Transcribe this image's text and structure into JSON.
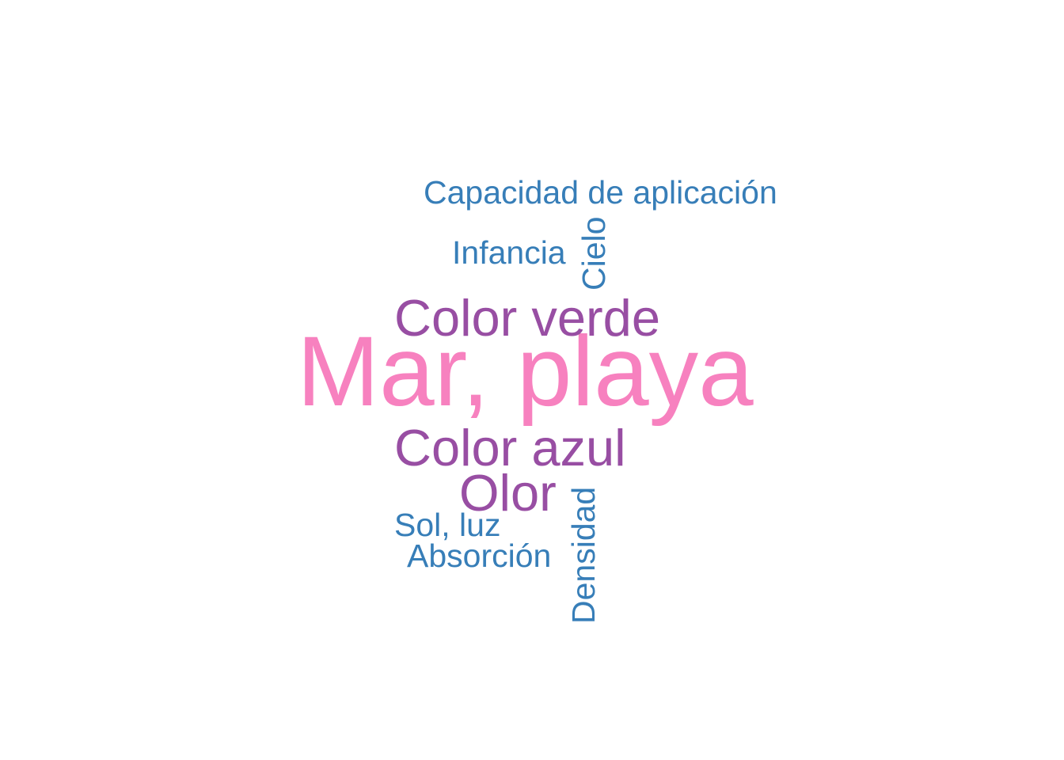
{
  "chart_data": {
    "type": "wordcloud",
    "colors": {
      "pink": "#f781bf",
      "purple": "#984ea3",
      "blue": "#377eb8"
    },
    "words": [
      {
        "text": "Mar, playa",
        "color": "#f781bf",
        "rotated": false
      },
      {
        "text": "Color verde",
        "color": "#984ea3",
        "rotated": false
      },
      {
        "text": "Color azul",
        "color": "#984ea3",
        "rotated": false
      },
      {
        "text": "Olor",
        "color": "#984ea3",
        "rotated": false
      },
      {
        "text": "Capacidad de aplicación",
        "color": "#377eb8",
        "rotated": false
      },
      {
        "text": "Infancia",
        "color": "#377eb8",
        "rotated": false
      },
      {
        "text": "Cielo",
        "color": "#377eb8",
        "rotated": true
      },
      {
        "text": "Sol, luz",
        "color": "#377eb8",
        "rotated": false
      },
      {
        "text": "Absorción",
        "color": "#377eb8",
        "rotated": false
      },
      {
        "text": "Densidad",
        "color": "#377eb8",
        "rotated": true
      }
    ]
  }
}
